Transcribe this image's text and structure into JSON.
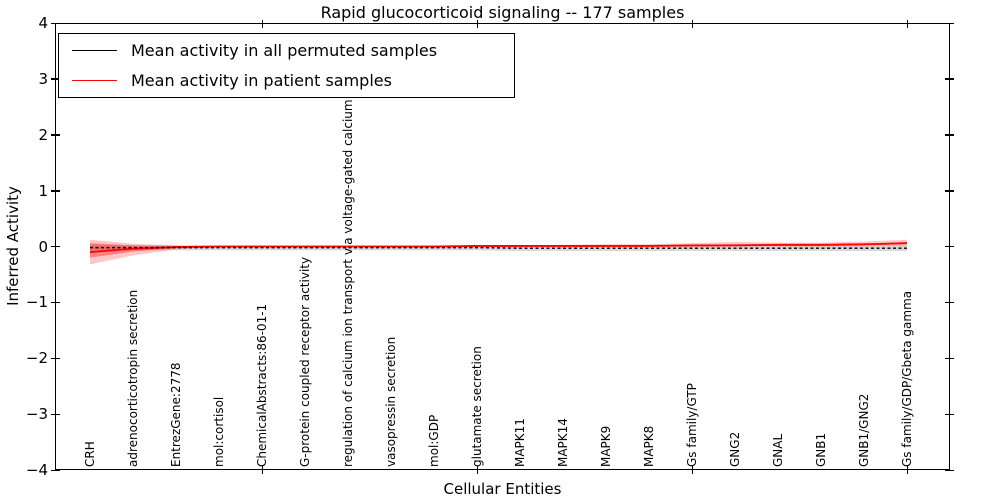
{
  "title": "Rapid glucocorticoid signaling -- 177 samples",
  "axes": {
    "ylabel": "Inferred Activity",
    "xlabel": "Cellular Entities",
    "yticks": [
      "4",
      "3",
      "2",
      "1",
      "0",
      "−1",
      "−2",
      "−3",
      "−4"
    ]
  },
  "legend": {
    "items": [
      {
        "label": "Mean activity in all permuted samples",
        "color": "#000000"
      },
      {
        "label": "Mean activity in patient samples",
        "color": "#ff0000"
      }
    ]
  },
  "chart_data": {
    "type": "line",
    "title": "Rapid glucocorticoid signaling -- 177 samples",
    "xlabel": "Cellular Entities",
    "ylabel": "Inferred Activity",
    "ylim": [
      -4,
      4
    ],
    "grid": false,
    "legend_position": "upper left",
    "categories": [
      "CRH",
      "adrenocorticotropin secretion",
      "EntrezGene:2778",
      "mol:cortisol",
      "ChemicalAbstracts:86-01-1",
      "G-protein coupled receptor activity",
      "regulation of calcium ion transport via voltage-gated calcium channel",
      "vasopressin secretion",
      "mol:GDP",
      "glutamate secretion",
      "MAPK11",
      "MAPK14",
      "MAPK9",
      "MAPK8",
      "Gs family/GTP",
      "GNG2",
      "GNAL",
      "GNB1",
      "GNB1/GNG2",
      "Gs family/GDP/Gbeta gamma"
    ],
    "xtick_mark_indices": [
      4,
      9,
      14,
      19
    ],
    "series": [
      {
        "name": "Mean activity in all permuted samples",
        "color": "#000000",
        "style": "dashed",
        "band_color": "rgba(0,0,0,0.15)",
        "values": [
          -0.02,
          -0.02,
          -0.02,
          -0.02,
          -0.02,
          -0.02,
          -0.02,
          -0.02,
          -0.02,
          -0.02,
          -0.03,
          -0.03,
          -0.03,
          -0.03,
          -0.03,
          -0.03,
          -0.03,
          -0.03,
          -0.03,
          -0.03
        ],
        "band_upper": [
          0.03,
          0.02,
          0.02,
          0.02,
          0.02,
          0.02,
          0.02,
          0.02,
          0.02,
          0.02,
          0.02,
          0.02,
          0.02,
          0.02,
          0.02,
          0.02,
          0.02,
          0.02,
          0.02,
          0.02
        ],
        "band_lower": [
          -0.08,
          -0.07,
          -0.07,
          -0.07,
          -0.07,
          -0.07,
          -0.07,
          -0.07,
          -0.07,
          -0.07,
          -0.08,
          -0.08,
          -0.08,
          -0.08,
          -0.08,
          -0.08,
          -0.08,
          -0.08,
          -0.08,
          -0.08
        ]
      },
      {
        "name": "Mean activity in patient samples",
        "color": "#ff0000",
        "style": "solid",
        "band_color": "rgba(255,0,0,0.22)",
        "inner_band_color": "rgba(255,0,0,0.35)",
        "values": [
          -0.1,
          -0.04,
          -0.01,
          0.0,
          0.0,
          0.0,
          0.0,
          0.0,
          0.0,
          0.01,
          0.01,
          0.01,
          0.01,
          0.01,
          0.02,
          0.02,
          0.03,
          0.03,
          0.04,
          0.06
        ],
        "band_upper": [
          0.12,
          0.05,
          0.02,
          0.01,
          0.01,
          0.01,
          0.01,
          0.01,
          0.01,
          0.02,
          0.03,
          0.03,
          0.04,
          0.04,
          0.06,
          0.08,
          0.07,
          0.07,
          0.09,
          0.12
        ],
        "band_lower": [
          -0.32,
          -0.16,
          -0.05,
          -0.01,
          -0.01,
          -0.01,
          -0.01,
          -0.01,
          -0.01,
          -0.01,
          -0.01,
          -0.01,
          -0.01,
          -0.01,
          -0.01,
          0.0,
          0.0,
          0.0,
          0.0,
          0.01
        ],
        "inner_band_upper": [
          0.06,
          0.02,
          0.01,
          0.005,
          0.005,
          0.005,
          0.005,
          0.005,
          0.005,
          0.01,
          0.02,
          0.02,
          0.02,
          0.02,
          0.03,
          0.04,
          0.04,
          0.04,
          0.05,
          0.08
        ],
        "inner_band_lower": [
          -0.2,
          -0.09,
          -0.03,
          -0.005,
          -0.005,
          -0.005,
          -0.005,
          -0.005,
          -0.005,
          -0.005,
          0.0,
          0.0,
          0.0,
          0.0,
          0.0,
          0.005,
          0.01,
          0.01,
          0.02,
          0.04
        ]
      }
    ]
  }
}
